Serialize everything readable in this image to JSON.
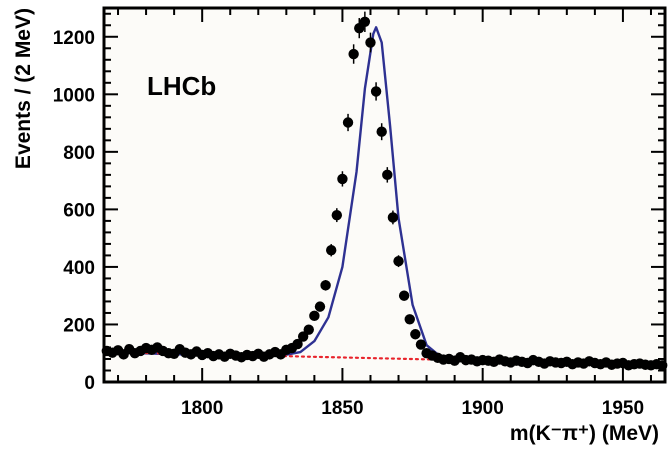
{
  "chart_data": {
    "type": "scatter",
    "experiment_label": "LHCb",
    "xlabel": "m(K⁻π⁺) (MeV)",
    "ylabel": "Events / (2 MeV)",
    "xlim": [
      1765,
      1965
    ],
    "ylim": [
      0,
      1300
    ],
    "x_ticks": [
      1800,
      1850,
      1900,
      1950
    ],
    "y_ticks": [
      0,
      200,
      400,
      600,
      800,
      1000,
      1200
    ],
    "grid": false,
    "plot_background": "#fcfbf8",
    "colors": {
      "data": "#000000",
      "fit": "#2e3192",
      "background_fit": "#e8242c"
    },
    "series": [
      {
        "kind": "data",
        "x": [
          1766,
          1768,
          1770,
          1772,
          1774,
          1776,
          1778,
          1780,
          1782,
          1784,
          1786,
          1788,
          1790,
          1792,
          1794,
          1796,
          1798,
          1800,
          1802,
          1804,
          1806,
          1808,
          1810,
          1812,
          1814,
          1816,
          1818,
          1820,
          1822,
          1824,
          1826,
          1828,
          1830,
          1832,
          1834,
          1836,
          1838,
          1840,
          1842,
          1844,
          1846,
          1848,
          1850,
          1852,
          1854,
          1856,
          1858,
          1860,
          1862,
          1864,
          1866,
          1868,
          1870,
          1872,
          1874,
          1876,
          1878,
          1880,
          1882,
          1884,
          1886,
          1888,
          1890,
          1892,
          1894,
          1896,
          1898,
          1900,
          1902,
          1904,
          1906,
          1908,
          1910,
          1912,
          1914,
          1916,
          1918,
          1920,
          1922,
          1924,
          1926,
          1928,
          1930,
          1932,
          1934,
          1936,
          1938,
          1940,
          1942,
          1944,
          1946,
          1948,
          1950,
          1952,
          1954,
          1956,
          1958,
          1960,
          1962,
          1964
        ],
        "y": [
          108,
          102,
          110,
          96,
          114,
          100,
          108,
          118,
          112,
          120,
          108,
          100,
          98,
          114,
          102,
          96,
          106,
          94,
          100,
          90,
          96,
          88,
          98,
          92,
          86,
          94,
          90,
          98,
          88,
          96,
          104,
          96,
          112,
          118,
          132,
          158,
          182,
          230,
          262,
          336,
          458,
          580,
          706,
          902,
          1140,
          1230,
          1252,
          1180,
          1010,
          870,
          720,
          572,
          420,
          300,
          218,
          166,
          130,
          100,
          92,
          84,
          78,
          80,
          74,
          86,
          76,
          78,
          72,
          76,
          74,
          70,
          78,
          72,
          68,
          74,
          70,
          66,
          76,
          70,
          64,
          72,
          68,
          66,
          70,
          62,
          68,
          64,
          72,
          66,
          62,
          68,
          60,
          64,
          66,
          58,
          62,
          64,
          60,
          58,
          62,
          58
        ],
        "yerr": 24
      },
      {
        "kind": "fit",
        "x": [
          1765,
          1800,
          1820,
          1830,
          1835,
          1840,
          1845,
          1850,
          1855,
          1858,
          1861,
          1862,
          1864,
          1867,
          1870,
          1875,
          1880,
          1885,
          1890,
          1895,
          1905,
          1930,
          1965
        ],
        "y": [
          104,
          94,
          90,
          95,
          104,
          142,
          225,
          400,
          730,
          1020,
          1210,
          1233,
          1180,
          890,
          570,
          268,
          128,
          88,
          76,
          72,
          71,
          67,
          60
        ]
      },
      {
        "kind": "background",
        "x": [
          1765,
          1965
        ],
        "y": [
          104,
          60
        ]
      }
    ]
  }
}
